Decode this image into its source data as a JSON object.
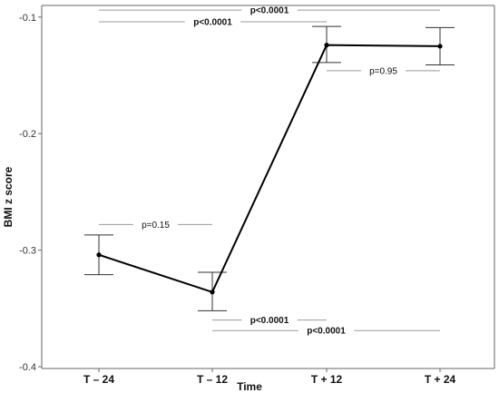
{
  "chart_data": {
    "type": "line",
    "xlabel": "Time",
    "ylabel": "BMI z score",
    "categories": [
      "T – 24",
      "T – 12",
      "T + 12",
      "T + 24"
    ],
    "values": [
      -0.304,
      -0.336,
      -0.124,
      -0.125
    ],
    "error_low": [
      -0.321,
      -0.352,
      -0.139,
      -0.141
    ],
    "error_high": [
      -0.287,
      -0.319,
      -0.108,
      -0.109
    ],
    "ylim": [
      -0.4,
      -0.09
    ],
    "yticks": [
      -0.1,
      -0.2,
      -0.3,
      -0.4
    ],
    "ytick_labels": [
      "-0.1",
      "-0.2",
      "-0.3",
      "-0.4"
    ],
    "grid": false,
    "annotations": [
      {
        "text": "p<0.0001",
        "from": 0,
        "to": 3,
        "y": -0.094,
        "bold": true
      },
      {
        "text": "p<0.0001",
        "from": 0,
        "to": 2,
        "y": -0.104,
        "bold": true
      },
      {
        "text": "p=0.95",
        "from": 2,
        "to": 3,
        "y": -0.146,
        "bold": false
      },
      {
        "text": "p=0.15",
        "from": 0,
        "to": 1,
        "y": -0.278,
        "bold": false
      },
      {
        "text": "p<0.0001",
        "from": 1,
        "to": 2,
        "y": -0.36,
        "bold": true
      },
      {
        "text": "p<0.0001",
        "from": 1,
        "to": 3,
        "y": -0.369,
        "bold": true
      }
    ],
    "colors": {
      "line": "#000000",
      "annotation_line": "#999999",
      "axis": "#666666"
    }
  }
}
